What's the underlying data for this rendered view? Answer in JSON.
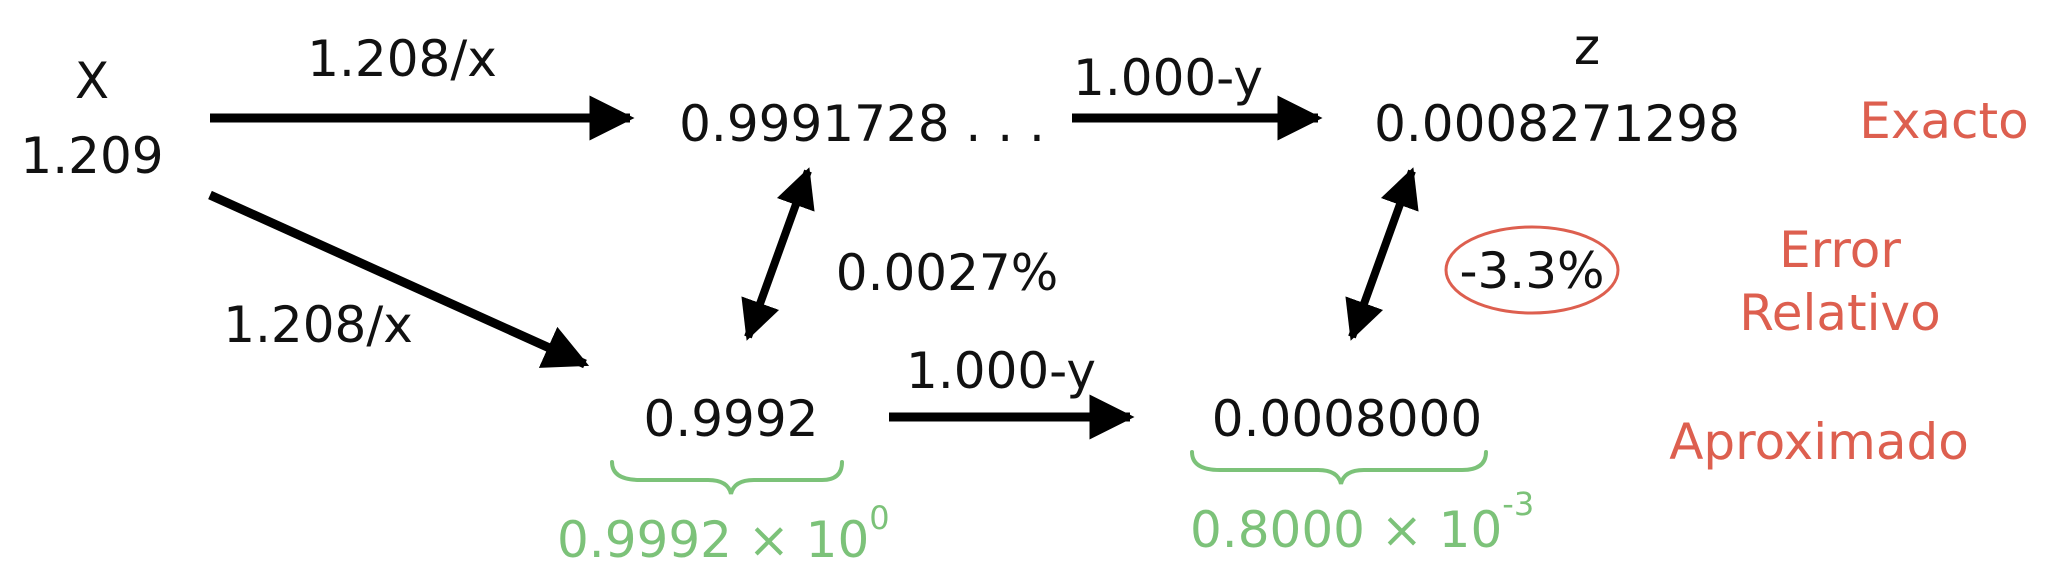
{
  "labels": {
    "x_var": "X",
    "x_value": "1.209",
    "f_label_top": "1.208/x",
    "f_label_bottom": "1.208/x",
    "g_label_top": "1.000-y",
    "g_label_bottom": "1.000-y",
    "y_exact": "0.9991728 . . .",
    "y_approx": "0.9992",
    "z_var": "z",
    "z_exact": "0.0008271298",
    "z_approx": "0.0008000",
    "err_y": "0.0027%",
    "err_z": "-3.3%"
  },
  "legend": {
    "exacto": "Exacto",
    "error_line1": "Error",
    "error_line2": "Relativo",
    "aproximado": "Aproximado"
  },
  "sci_notation": {
    "y_mantissa": "0.9992 × 10",
    "y_exponent": "0",
    "z_mantissa": "0.8000 × 10",
    "z_exponent": "-3"
  },
  "colors": {
    "text": "#111111",
    "legend": "#dd5f4f",
    "annotation": "#7cc279",
    "arrow": "#000000"
  }
}
